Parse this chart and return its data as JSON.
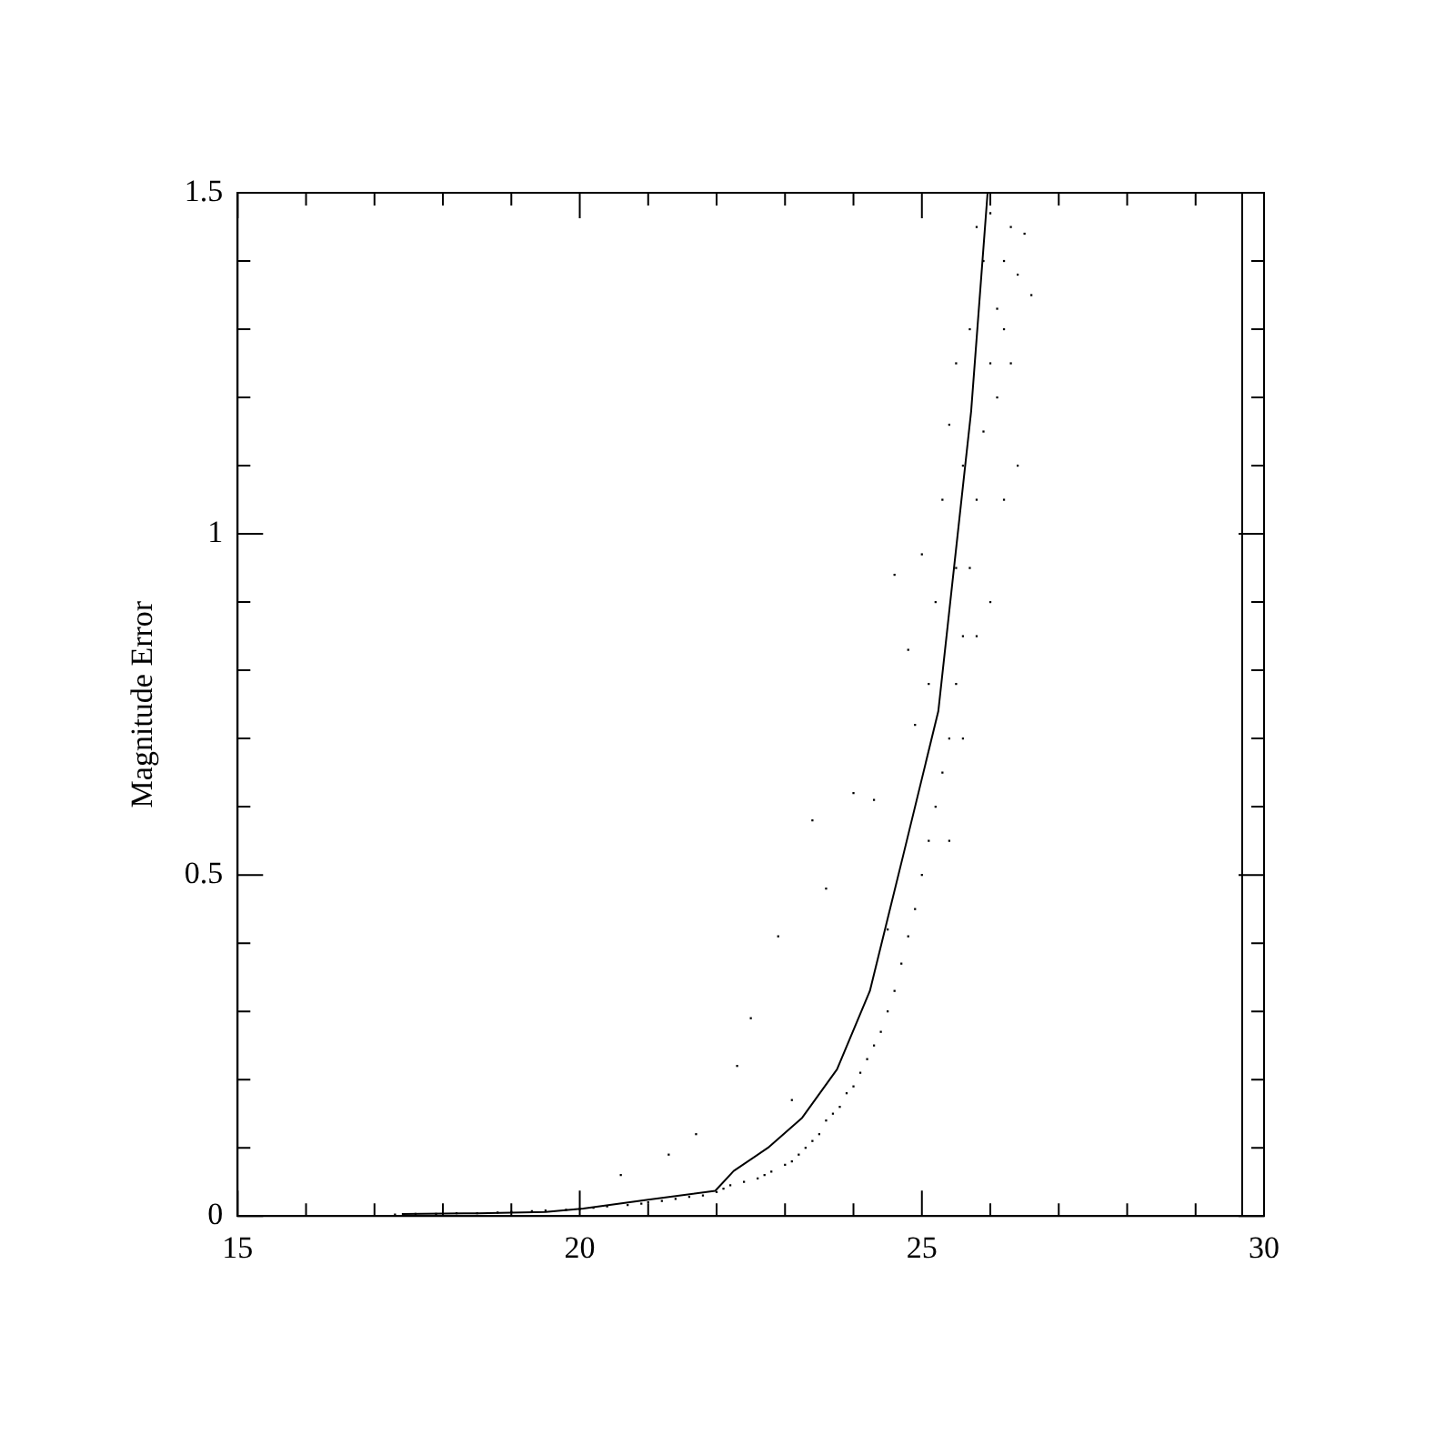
{
  "chart_data": {
    "type": "scatter",
    "ylabel": "Magnitude Error",
    "xlim": [
      15,
      30
    ],
    "ylim": [
      0,
      1.5
    ],
    "xticks": [
      15,
      {
        "value": 16,
        "label": null
      },
      {
        "value": 17,
        "label": null
      },
      {
        "value": 18,
        "label": null
      },
      {
        "value": 19,
        "label": null
      },
      20,
      {
        "value": 21,
        "label": null
      },
      {
        "value": 22,
        "label": null
      },
      {
        "value": 23,
        "label": null
      },
      {
        "value": 24,
        "label": null
      },
      25,
      {
        "value": 26,
        "label": null
      },
      {
        "value": 27,
        "label": null
      },
      {
        "value": 28,
        "label": null
      },
      {
        "value": 29,
        "label": null
      },
      30
    ],
    "yticks": [
      0,
      {
        "value": 0.1,
        "label": null
      },
      {
        "value": 0.2,
        "label": null
      },
      {
        "value": 0.3,
        "label": null
      },
      {
        "value": 0.4,
        "label": null
      },
      0.5,
      {
        "value": 0.6,
        "label": null
      },
      {
        "value": 0.7,
        "label": null
      },
      {
        "value": 0.8,
        "label": null
      },
      {
        "value": 0.9,
        "label": null
      },
      1,
      {
        "value": 1.1,
        "label": null
      },
      {
        "value": 1.2,
        "label": null
      },
      {
        "value": 1.3,
        "label": null
      },
      {
        "value": 1.4,
        "label": null
      },
      1.5
    ],
    "grid": false,
    "legend": false,
    "series": [
      {
        "marker": "square",
        "color": "#000000",
        "x": [
          17.3,
          17.6,
          17.9,
          18.2,
          18.5,
          18.8,
          19.0,
          19.3,
          19.5,
          19.8,
          20.0,
          20.2,
          20.4,
          20.6,
          20.7,
          20.9,
          21.0,
          21.2,
          21.3,
          21.4,
          21.6,
          21.7,
          21.8,
          22.0,
          22.1,
          22.2,
          22.3,
          22.4,
          22.5,
          22.6,
          22.7,
          22.8,
          22.9,
          23.0,
          23.1,
          23.1,
          23.2,
          23.3,
          23.4,
          23.4,
          23.5,
          23.6,
          23.6,
          23.7,
          23.8,
          23.9,
          24.0,
          24.0,
          24.1,
          24.2,
          24.3,
          24.3,
          24.4,
          24.5,
          24.5,
          24.6,
          24.6,
          24.7,
          24.8,
          24.8,
          24.9,
          24.9,
          25.0,
          25.0,
          25.1,
          25.1,
          25.2,
          25.2,
          25.3,
          25.3,
          25.4,
          25.4,
          25.5,
          25.5,
          25.5,
          25.6,
          25.6,
          25.7,
          25.7,
          25.8,
          25.8,
          25.9,
          25.9,
          26.0,
          26.0,
          26.1,
          26.1,
          26.2,
          26.2,
          26.3,
          26.3,
          26.4,
          26.5,
          26.6,
          25.4,
          25.6,
          25.8,
          26.0,
          26.2,
          26.4
        ],
        "values": [
          0.002,
          0.003,
          0.003,
          0.004,
          0.004,
          0.005,
          0.006,
          0.007,
          0.008,
          0.009,
          0.01,
          0.012,
          0.014,
          0.06,
          0.016,
          0.018,
          0.02,
          0.022,
          0.09,
          0.025,
          0.028,
          0.12,
          0.03,
          0.035,
          0.04,
          0.045,
          0.22,
          0.05,
          0.29,
          0.055,
          0.06,
          0.065,
          0.41,
          0.075,
          0.08,
          0.17,
          0.09,
          0.1,
          0.58,
          0.11,
          0.12,
          0.48,
          0.14,
          0.15,
          0.16,
          0.18,
          0.19,
          0.62,
          0.21,
          0.23,
          0.25,
          0.61,
          0.27,
          0.3,
          0.42,
          0.33,
          0.94,
          0.37,
          0.41,
          0.83,
          0.45,
          0.72,
          0.5,
          0.97,
          0.55,
          0.78,
          0.6,
          0.9,
          0.65,
          1.05,
          0.7,
          1.16,
          0.78,
          0.95,
          1.25,
          0.85,
          1.1,
          0.95,
          1.3,
          1.05,
          1.45,
          1.15,
          1.4,
          1.25,
          1.47,
          1.33,
          1.2,
          1.4,
          1.05,
          1.45,
          1.25,
          1.38,
          1.44,
          1.35,
          0.55,
          0.7,
          0.85,
          0.9,
          1.3,
          1.1
        ]
      },
      {
        "type": "line",
        "color": "#000000",
        "x": [
          17.4,
          18.5,
          19.5,
          20.05,
          21.0,
          21.98,
          22.25,
          22.75,
          23.25,
          23.76,
          24.24,
          24.73,
          25.24,
          25.72,
          25.96
        ],
        "values": [
          0.003,
          0.004,
          0.006,
          0.011,
          0.024,
          0.037,
          0.066,
          0.1,
          0.144,
          0.215,
          0.33,
          0.53,
          0.74,
          1.18,
          1.5
        ]
      },
      {
        "type": "line",
        "color": "#000000",
        "x": [
          29.68,
          29.68
        ],
        "values": [
          0,
          1.5
        ]
      }
    ]
  }
}
